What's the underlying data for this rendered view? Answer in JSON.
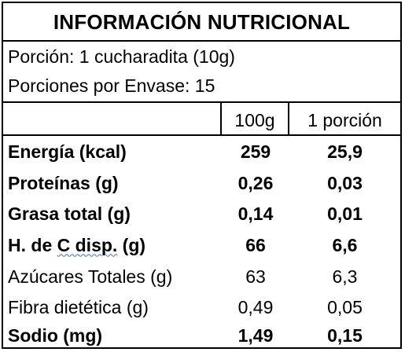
{
  "title": "INFORMACIÓN NUTRICIONAL",
  "portion": "Porción: 1 cucharadita (10g)",
  "servings": "Porciones por Envase: 15",
  "columns": {
    "per100": "100g",
    "perPortion": "1 porción"
  },
  "rows": [
    {
      "name": "Energía (kcal)",
      "per100": "259",
      "perPortion": "25,9",
      "bold": true
    },
    {
      "name": "Proteínas (g)",
      "per100": "0,26",
      "perPortion": "0,03",
      "bold": true
    },
    {
      "name": "Grasa total (g)",
      "per100": "0,14",
      "perPortion": "0,01",
      "bold": true
    },
    {
      "name_pre": "H. de ",
      "name_mark": "C disp.",
      "name_post": " (g)",
      "per100": "66",
      "perPortion": "6,6",
      "bold": true
    },
    {
      "name": "Azúcares Totales (g)",
      "per100": "63",
      "perPortion": "6,3",
      "bold": false
    },
    {
      "name": "Fibra dietética (g)",
      "per100": "0,49",
      "perPortion": "0,05",
      "bold": false
    },
    {
      "name": "Sodio (mg)",
      "per100": "1,49",
      "perPortion": "0,15",
      "bold": true
    }
  ]
}
